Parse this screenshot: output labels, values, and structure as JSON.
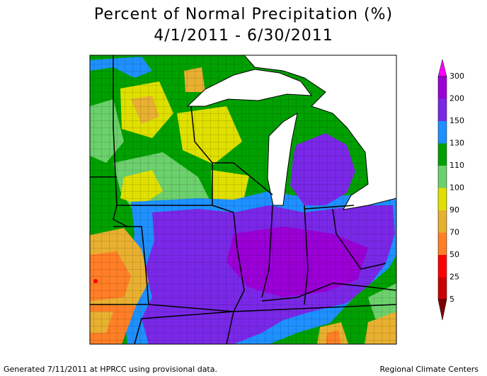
{
  "header": {
    "title": "Percent of Normal Precipitation (%)",
    "subtitle": "4/1/2011 - 6/30/2011"
  },
  "legend": {
    "top_color": "#ff00ff",
    "items": [
      {
        "label": 300,
        "color": "#9a00d6"
      },
      {
        "label": 200,
        "color": "#7a28e8"
      },
      {
        "label": 150,
        "color": "#1e90ff"
      },
      {
        "label": 130,
        "color": "#00a000"
      },
      {
        "label": 110,
        "color": "#6cd06c"
      },
      {
        "label": 100,
        "color": "#e0e000"
      },
      {
        "label": 90,
        "color": "#e8b030"
      },
      {
        "label": 70,
        "color": "#ff7f27"
      },
      {
        "label": 50,
        "color": "#ff0000"
      },
      {
        "label": 25,
        "color": "#c80000"
      },
      {
        "label": 5,
        "color": "#800000"
      }
    ]
  },
  "footer": {
    "left": "Generated 7/11/2011 at HPRCC using provisional data.",
    "right": "Regional Climate Centers"
  }
}
